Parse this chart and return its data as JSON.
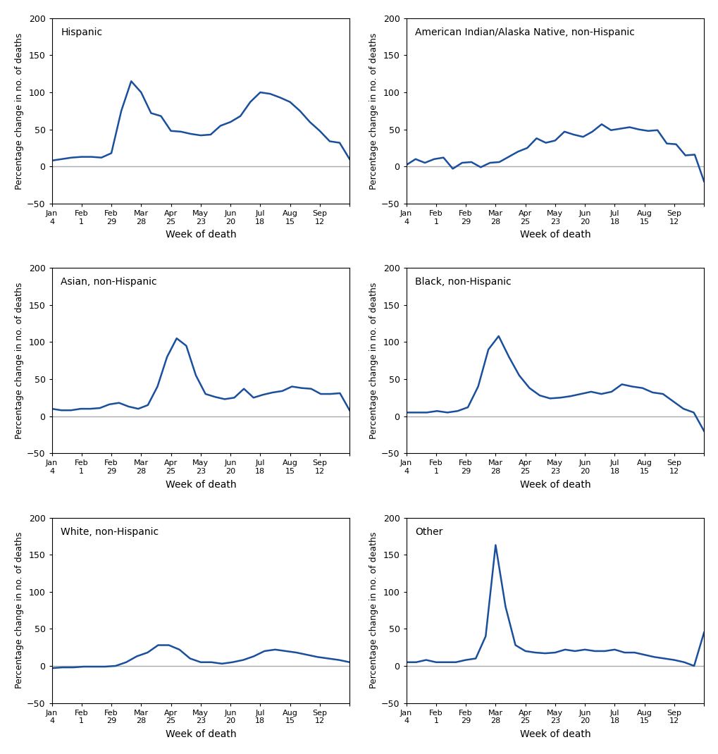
{
  "line_color": "#1a4f9c",
  "zero_line_color": "#aaaaaa",
  "background_color": "#ffffff",
  "ylim": [
    -50,
    200
  ],
  "yticks": [
    -50,
    0,
    50,
    100,
    150,
    200
  ],
  "xlabel": "Week of death",
  "ylabel": "Percentage change in no. of deaths",
  "x_tick_labels": [
    "Jan\n4",
    "Feb\n1",
    "Feb\n29",
    "Mar\n28",
    "Apr\n25",
    "May\n23",
    "Jun\n20",
    "Jul\n18",
    "Aug\n15",
    "Sep\n12",
    ""
  ],
  "subplots": [
    {
      "title": "Hispanic",
      "values": [
        8,
        10,
        12,
        13,
        13,
        12,
        18,
        75,
        115,
        100,
        72,
        68,
        48,
        47,
        44,
        42,
        43,
        55,
        60,
        68,
        87,
        100,
        98,
        93,
        87,
        75,
        60,
        48,
        34,
        32,
        10
      ]
    },
    {
      "title": "American Indian/Alaska Native, non-Hispanic",
      "values": [
        2,
        10,
        5,
        10,
        12,
        -3,
        5,
        6,
        -1,
        5,
        6,
        13,
        20,
        25,
        38,
        32,
        35,
        47,
        43,
        40,
        47,
        57,
        49,
        51,
        53,
        50,
        48,
        49,
        31,
        30,
        15,
        16,
        -20
      ]
    },
    {
      "title": "Asian, non-Hispanic",
      "values": [
        10,
        8,
        8,
        10,
        10,
        11,
        16,
        18,
        13,
        10,
        15,
        40,
        80,
        105,
        95,
        55,
        30,
        26,
        23,
        25,
        37,
        25,
        29,
        32,
        34,
        40,
        38,
        37,
        30,
        30,
        31,
        8
      ]
    },
    {
      "title": "Black, non-Hispanic",
      "values": [
        5,
        5,
        5,
        7,
        5,
        7,
        12,
        40,
        90,
        108,
        80,
        55,
        38,
        28,
        24,
        25,
        27,
        30,
        33,
        30,
        33,
        43,
        40,
        38,
        32,
        30,
        20,
        10,
        5,
        -20
      ]
    },
    {
      "title": "White, non-Hispanic",
      "values": [
        -3,
        -2,
        -2,
        -1,
        -1,
        -1,
        0,
        5,
        13,
        18,
        20,
        20,
        18,
        10,
        5,
        5,
        3,
        5,
        8,
        10,
        15,
        18,
        18,
        15,
        13,
        12,
        10,
        8,
        5
      ]
    },
    {
      "title": "Other",
      "values": [
        5,
        5,
        8,
        5,
        5,
        5,
        8,
        10,
        40,
        163,
        80,
        28,
        20,
        18,
        17,
        18,
        22,
        20,
        22,
        20,
        20,
        22,
        18,
        18,
        15,
        12,
        10,
        8,
        5,
        0,
        45
      ]
    }
  ]
}
